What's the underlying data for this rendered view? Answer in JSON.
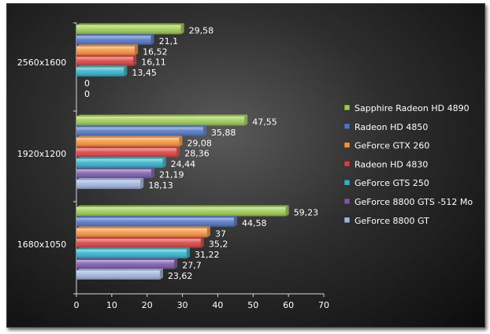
{
  "chart_data": {
    "type": "bar",
    "orientation": "horizontal",
    "categories": [
      "2560x1600",
      "1920x1200",
      "1680x1050"
    ],
    "series": [
      {
        "name": "Sapphire Radeon HD 4890",
        "color": "#9bca4f",
        "values": [
          29.58,
          47.55,
          59.23
        ],
        "labels": [
          "29,58",
          "47,55",
          "59,23"
        ]
      },
      {
        "name": "Radeon HD 4850",
        "color": "#4f74c4",
        "values": [
          21.1,
          35.88,
          44.58
        ],
        "labels": [
          "21,1",
          "35,88",
          "44,58"
        ]
      },
      {
        "name": "GeForce GTX 260",
        "color": "#f4933d",
        "values": [
          16.52,
          29.08,
          37
        ],
        "labels": [
          "16,52",
          "29,08",
          "37"
        ]
      },
      {
        "name": "Radeon HD 4830",
        "color": "#d9403c",
        "values": [
          16.11,
          28.36,
          35.2
        ],
        "labels": [
          "16,11",
          "28,36",
          "35,2"
        ]
      },
      {
        "name": "GeForce GTS 250",
        "color": "#2fb1c9",
        "values": [
          13.45,
          24.44,
          31.22
        ],
        "labels": [
          "13,45",
          "24,44",
          "31,22"
        ]
      },
      {
        "name": "GeForce 8800 GTS -512 Mo",
        "color": "#7a58a8",
        "values": [
          0,
          21.19,
          27.7
        ],
        "labels": [
          "0",
          "21,19",
          "27,7"
        ]
      },
      {
        "name": "GeForce 8800 GT",
        "color": "#9fb3de",
        "values": [
          0,
          18.13,
          23.62
        ],
        "labels": [
          "0",
          "18,13",
          "23,62"
        ]
      }
    ],
    "xlim": [
      0,
      70
    ],
    "xticks": [
      0,
      10,
      20,
      30,
      40,
      50,
      60,
      70
    ],
    "xtick_labels": [
      "0",
      "10",
      "20",
      "30",
      "40",
      "50",
      "60",
      "70"
    ],
    "grid": false,
    "legend_position": "right"
  }
}
